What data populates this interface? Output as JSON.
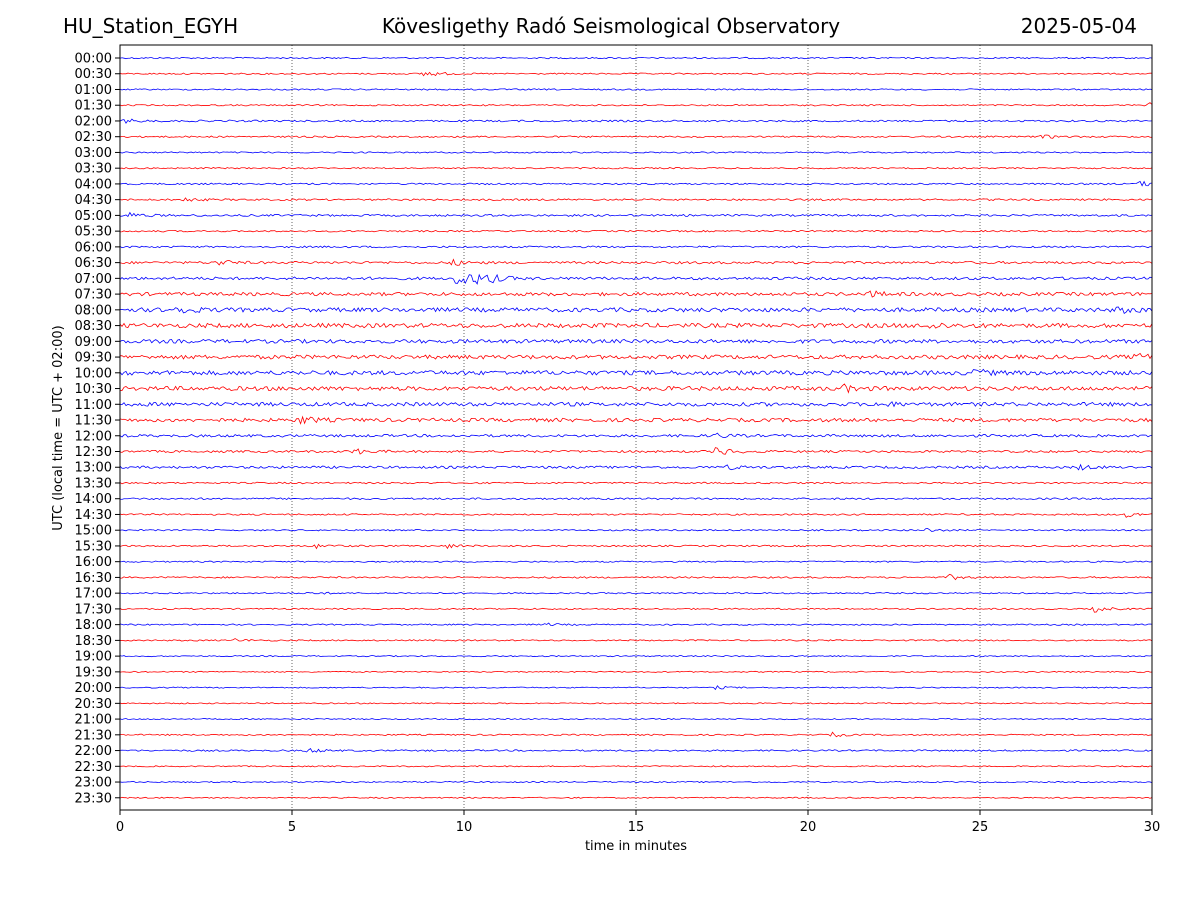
{
  "header": {
    "station": "HU_Station_EGYH",
    "observatory": "Kövesligethy Radó Seismological Observatory",
    "date": "2025-05-04"
  },
  "chart_data": {
    "type": "line",
    "title": "Kövesligethy Radó Seismological Observatory",
    "xlabel": "time in minutes",
    "ylabel": "UTC (local time = UTC + 02:00)",
    "xlim": [
      0,
      30
    ],
    "x_ticks": [
      0,
      5,
      10,
      15,
      20,
      25,
      30
    ],
    "x_tick_labels": [
      "0",
      "5",
      "10",
      "15",
      "20",
      "25",
      "30"
    ],
    "grid": "vertical dotted at 5, 10, 15, 20, 25",
    "colors": {
      "even_rows": "#0000ff",
      "odd_rows": "#ff0000"
    },
    "rows": [
      {
        "label": "00:00",
        "amp": 0.7,
        "events": []
      },
      {
        "label": "00:30",
        "amp": 0.7,
        "events": [
          {
            "t": 8.8,
            "a": 4
          }
        ]
      },
      {
        "label": "01:00",
        "amp": 0.7,
        "events": []
      },
      {
        "label": "01:30",
        "amp": 0.7,
        "events": [
          {
            "t": 29.9,
            "a": 2.5
          }
        ]
      },
      {
        "label": "02:00",
        "amp": 0.9,
        "events": [
          {
            "t": 0.1,
            "a": 2
          }
        ]
      },
      {
        "label": "02:30",
        "amp": 0.8,
        "events": [
          {
            "t": 26.8,
            "a": 2
          }
        ]
      },
      {
        "label": "03:00",
        "amp": 0.7,
        "events": []
      },
      {
        "label": "03:30",
        "amp": 0.7,
        "events": []
      },
      {
        "label": "04:00",
        "amp": 0.8,
        "events": [
          {
            "t": 29.6,
            "a": 3
          }
        ]
      },
      {
        "label": "04:30",
        "amp": 0.9,
        "events": [
          {
            "t": 1.8,
            "a": 2
          }
        ]
      },
      {
        "label": "05:00",
        "amp": 1.0,
        "events": [
          {
            "t": 0.2,
            "a": 3
          }
        ]
      },
      {
        "label": "05:30",
        "amp": 0.8,
        "events": []
      },
      {
        "label": "06:00",
        "amp": 0.9,
        "events": []
      },
      {
        "label": "06:30",
        "amp": 1.2,
        "events": [
          {
            "t": 2.8,
            "a": 3
          },
          {
            "t": 9.6,
            "a": 3
          }
        ]
      },
      {
        "label": "07:00",
        "amp": 1.4,
        "events": [
          {
            "t": 9.7,
            "a": 9
          },
          {
            "t": 10.2,
            "a": 5
          },
          {
            "t": 10.7,
            "a": 3
          }
        ]
      },
      {
        "label": "07:30",
        "amp": 1.7,
        "events": [
          {
            "t": 21.8,
            "a": 2.5
          }
        ]
      },
      {
        "label": "08:00",
        "amp": 2.1,
        "events": [
          {
            "t": 1.6,
            "a": 4
          },
          {
            "t": 29.0,
            "a": 3
          }
        ]
      },
      {
        "label": "08:30",
        "amp": 2.2,
        "events": [
          {
            "t": 23.5,
            "a": 3
          }
        ]
      },
      {
        "label": "09:00",
        "amp": 1.9,
        "events": []
      },
      {
        "label": "09:30",
        "amp": 2.0,
        "events": [
          {
            "t": 29.5,
            "a": 3
          }
        ]
      },
      {
        "label": "10:00",
        "amp": 2.2,
        "events": [
          {
            "t": 24.8,
            "a": 3
          }
        ]
      },
      {
        "label": "10:30",
        "amp": 2.1,
        "events": [
          {
            "t": 21.0,
            "a": 3
          }
        ]
      },
      {
        "label": "11:00",
        "amp": 1.9,
        "events": [
          {
            "t": 22.0,
            "a": 3
          }
        ]
      },
      {
        "label": "11:30",
        "amp": 1.8,
        "events": [
          {
            "t": 5.2,
            "a": 4
          }
        ]
      },
      {
        "label": "12:00",
        "amp": 1.3,
        "events": [
          {
            "t": 17.2,
            "a": 3
          }
        ]
      },
      {
        "label": "12:30",
        "amp": 1.1,
        "events": [
          {
            "t": 6.8,
            "a": 3
          },
          {
            "t": 17.3,
            "a": 5
          }
        ]
      },
      {
        "label": "13:00",
        "amp": 1.2,
        "events": [
          {
            "t": 27.8,
            "a": 3
          },
          {
            "t": 17.6,
            "a": 2
          }
        ]
      },
      {
        "label": "13:30",
        "amp": 0.8,
        "events": []
      },
      {
        "label": "14:00",
        "amp": 0.9,
        "events": []
      },
      {
        "label": "14:30",
        "amp": 0.8,
        "events": [
          {
            "t": 29.2,
            "a": 3
          }
        ]
      },
      {
        "label": "15:00",
        "amp": 0.7,
        "events": [
          {
            "t": 23.4,
            "a": 2
          }
        ]
      },
      {
        "label": "15:30",
        "amp": 0.8,
        "events": [
          {
            "t": 5.7,
            "a": 2
          },
          {
            "t": 9.5,
            "a": 2
          }
        ]
      },
      {
        "label": "16:00",
        "amp": 0.7,
        "events": []
      },
      {
        "label": "16:30",
        "amp": 0.8,
        "events": [
          {
            "t": 24.1,
            "a": 2.5
          }
        ]
      },
      {
        "label": "17:00",
        "amp": 0.7,
        "events": [
          {
            "t": 5.5,
            "a": 1.5
          }
        ]
      },
      {
        "label": "17:30",
        "amp": 0.7,
        "events": [
          {
            "t": 28.3,
            "a": 3
          }
        ]
      },
      {
        "label": "18:00",
        "amp": 0.7,
        "events": [
          {
            "t": 12.3,
            "a": 1.5
          }
        ]
      },
      {
        "label": "18:30",
        "amp": 0.7,
        "events": [
          {
            "t": 3.3,
            "a": 1.5
          }
        ]
      },
      {
        "label": "19:00",
        "amp": 0.6,
        "events": []
      },
      {
        "label": "19:30",
        "amp": 0.6,
        "events": []
      },
      {
        "label": "20:00",
        "amp": 0.6,
        "events": [
          {
            "t": 17.3,
            "a": 1.5
          }
        ]
      },
      {
        "label": "20:30",
        "amp": 0.6,
        "events": []
      },
      {
        "label": "21:00",
        "amp": 0.6,
        "events": []
      },
      {
        "label": "21:30",
        "amp": 0.7,
        "events": [
          {
            "t": 20.7,
            "a": 2
          }
        ]
      },
      {
        "label": "22:00",
        "amp": 0.8,
        "events": [
          {
            "t": 5.4,
            "a": 2.5
          }
        ]
      },
      {
        "label": "22:30",
        "amp": 0.6,
        "events": []
      },
      {
        "label": "23:00",
        "amp": 0.6,
        "events": []
      },
      {
        "label": "23:30",
        "amp": 0.6,
        "events": []
      }
    ]
  }
}
